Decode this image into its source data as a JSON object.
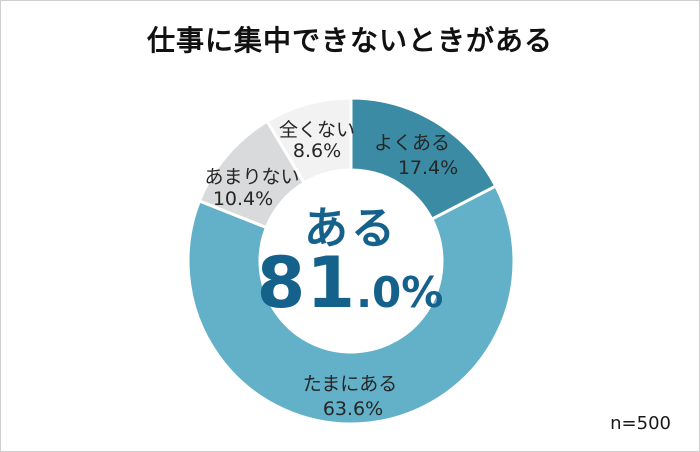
{
  "chart_data": {
    "type": "pie",
    "variant": "donut",
    "title": "仕事に集中できないときがある",
    "sample_size": "n=500",
    "start_angle_deg": -90,
    "direction": "clockwise",
    "legend_position": "none",
    "gap_color": "#ffffff",
    "label_text_color": "#262626",
    "segments": [
      {
        "label": "よくある",
        "value": 17.4,
        "display": "17.4%",
        "color": "#3A8BA3"
      },
      {
        "label": "たまにある",
        "value": 63.6,
        "display": "63.6%",
        "color": "#62B1C9"
      },
      {
        "label": "あまりない",
        "value": 10.4,
        "display": "10.4%",
        "color": "#D9DADB"
      },
      {
        "label": "全くない",
        "value": 8.6,
        "display": "8.6%",
        "color": "#F2F2F3"
      }
    ],
    "center": {
      "label": "ある",
      "value_big": "81",
      "value_small": ".0%",
      "display": "ある 81.0%",
      "color": "#14618C"
    }
  }
}
